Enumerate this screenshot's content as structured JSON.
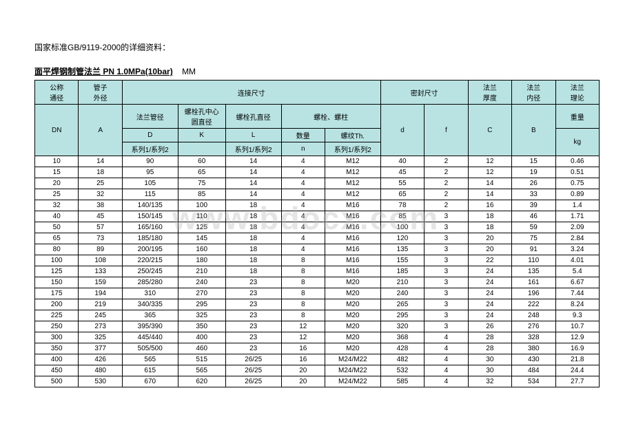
{
  "intro": "国家标准GB/9119-2000的详细资料：",
  "title_main": "面平焊钢制管法兰 PN 1.0MPa(10bar)",
  "title_unit": "MM",
  "watermark": "www.bdocx.com",
  "header": {
    "r1": {
      "dn": "公称",
      "a": "管子",
      "conn": "连接尺寸",
      "seal": "密封尺寸",
      "c": "法兰",
      "b": "法兰",
      "kg": "法兰"
    },
    "r2": {
      "dn": "通径",
      "a": "外径",
      "d_top": "",
      "k_top": "螺栓孔中心",
      "l_top": "",
      "bolt": "",
      "d2": "",
      "f": "",
      "c": "厚度",
      "b": "内径",
      "kg": "理论"
    },
    "r3": {
      "dn": "DN",
      "a": "A",
      "d": "法兰管径",
      "k": "圆直径",
      "l": "螺栓孔直径",
      "bolt": "螺栓、螺柱",
      "d2": "",
      "f": "",
      "c": "C",
      "b": "B",
      "kg": "重量"
    },
    "r4": {
      "d": "D",
      "k": "K",
      "l": "L",
      "n": "数量",
      "th": "螺纹Th.",
      "d2": "d",
      "f": "f",
      "kg": "kg"
    },
    "r5": {
      "d": "系列1/系列2",
      "l": "系列1/系列2",
      "n": "n",
      "th": "系列1/系列2"
    }
  },
  "rows": [
    [
      "10",
      "14",
      "90",
      "60",
      "14",
      "4",
      "M12",
      "40",
      "2",
      "12",
      "15",
      "0.46"
    ],
    [
      "15",
      "18",
      "95",
      "65",
      "14",
      "4",
      "M12",
      "45",
      "2",
      "12",
      "19",
      "0.51"
    ],
    [
      "20",
      "25",
      "105",
      "75",
      "14",
      "4",
      "M12",
      "55",
      "2",
      "14",
      "26",
      "0.75"
    ],
    [
      "25",
      "32",
      "115",
      "85",
      "14",
      "4",
      "M12",
      "65",
      "2",
      "14",
      "33",
      "0.89"
    ],
    [
      "32",
      "38",
      "140/135",
      "100",
      "18",
      "4",
      "M16",
      "78",
      "2",
      "16",
      "39",
      "1.4"
    ],
    [
      "40",
      "45",
      "150/145",
      "110",
      "18",
      "4",
      "M16",
      "85",
      "3",
      "18",
      "46",
      "1.71"
    ],
    [
      "50",
      "57",
      "165/160",
      "125",
      "18",
      "4",
      "M16",
      "100",
      "3",
      "18",
      "59",
      "2.09"
    ],
    [
      "65",
      "73",
      "185/180",
      "145",
      "18",
      "4",
      "M16",
      "120",
      "3",
      "20",
      "75",
      "2.84"
    ],
    [
      "80",
      "89",
      "200/195",
      "160",
      "18",
      "4",
      "M16",
      "135",
      "3",
      "20",
      "91",
      "3.24"
    ],
    [
      "100",
      "108",
      "220/215",
      "180",
      "18",
      "8",
      "M16",
      "155",
      "3",
      "22",
      "110",
      "4.01"
    ],
    [
      "125",
      "133",
      "250/245",
      "210",
      "18",
      "8",
      "M16",
      "185",
      "3",
      "24",
      "135",
      "5.4"
    ],
    [
      "150",
      "159",
      "285/280",
      "240",
      "23",
      "8",
      "M20",
      "210",
      "3",
      "24",
      "161",
      "6.67"
    ],
    [
      "175",
      "194",
      "310",
      "270",
      "23",
      "8",
      "M20",
      "240",
      "3",
      "24",
      "196",
      "7.44"
    ],
    [
      "200",
      "219",
      "340/335",
      "295",
      "23",
      "8",
      "M20",
      "265",
      "3",
      "24",
      "222",
      "8.24"
    ],
    [
      "225",
      "245",
      "365",
      "325",
      "23",
      "8",
      "M20",
      "295",
      "3",
      "24",
      "248",
      "9.3"
    ],
    [
      "250",
      "273",
      "395/390",
      "350",
      "23",
      "12",
      "M20",
      "320",
      "3",
      "26",
      "276",
      "10.7"
    ],
    [
      "300",
      "325",
      "445/440",
      "400",
      "23",
      "12",
      "M20",
      "368",
      "4",
      "28",
      "328",
      "12.9"
    ],
    [
      "350",
      "377",
      "505/500",
      "460",
      "23",
      "16",
      "M20",
      "428",
      "4",
      "28",
      "380",
      "16.9"
    ],
    [
      "400",
      "426",
      "565",
      "515",
      "26/25",
      "16",
      "M24/M22",
      "482",
      "4",
      "30",
      "430",
      "21.8"
    ],
    [
      "450",
      "480",
      "615",
      "565",
      "26/25",
      "20",
      "M24/M22",
      "532",
      "4",
      "30",
      "484",
      "24.4"
    ],
    [
      "500",
      "530",
      "670",
      "620",
      "26/25",
      "20",
      "M24/M22",
      "585",
      "4",
      "32",
      "534",
      "27.7"
    ]
  ],
  "colors": {
    "header_bg": "#b9e3e3",
    "border": "#000000",
    "text": "#000000",
    "bg": "#ffffff"
  }
}
